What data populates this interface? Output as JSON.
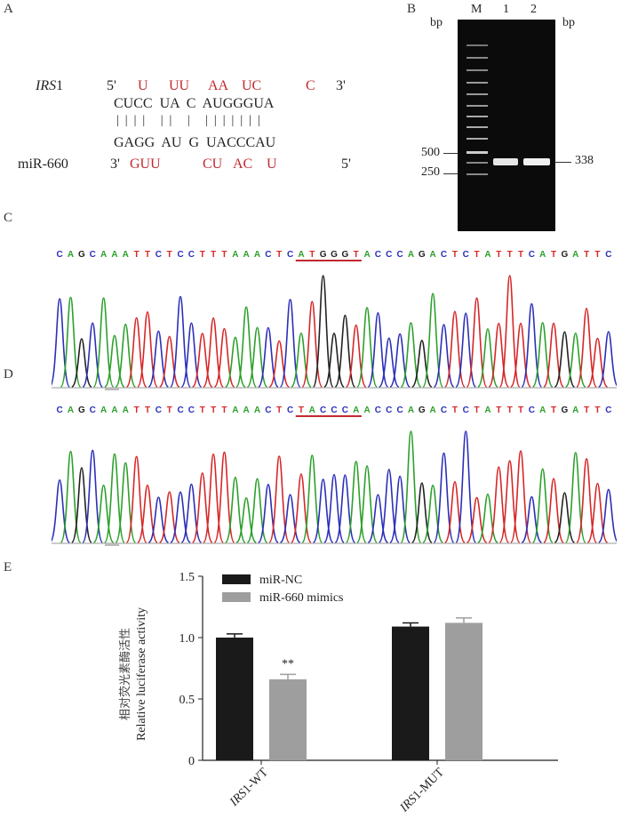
{
  "panels": {
    "a": "A",
    "b": "B",
    "c": "C",
    "d": "D",
    "e": "E"
  },
  "panel_a": {
    "gene_label_italic": "IRS",
    "gene_label_suffix": "1",
    "mirna_label": "miR-660",
    "five_prime": "5'",
    "three_prime": "3'",
    "top_red": [
      "U",
      "UU",
      "AA",
      "UC",
      "C"
    ],
    "top_pair": "CUCC  UA  C  AUGGGUA",
    "bonds": "|  |  |  |     |  |     |     |  |  |  |  |  |  |",
    "bottom_pair": "GAGG  AU  G  UACCCAU",
    "bottom_red": [
      "GUU",
      "CU",
      "AC",
      "U"
    ],
    "mirna_three": "3'",
    "mirna_five": "5'"
  },
  "panel_b": {
    "bp_left": "bp",
    "bp_right": "bp",
    "lanes": [
      "M",
      "1",
      "2"
    ],
    "marker_500": "500",
    "marker_250": "250",
    "band_size": "338"
  },
  "panel_c": {
    "sequence": "CAGCAAATTCTCCTTTAAACTCATGGGTACCCAGACTCTATTTCATGATTC",
    "underline_start": 22,
    "underline_end": 28
  },
  "panel_d": {
    "sequence": "CAGCAAATTCTCCTTTAAACTCTACCCAACCCAGACTCTATTTCATGATTC",
    "underline_start": 22,
    "underline_end": 28
  },
  "base_colors": {
    "A": "#2ca02c",
    "C": "#2b2fb8",
    "G": "#222222",
    "T": "#d62728"
  },
  "chart_data": {
    "type": "bar",
    "categories": [
      "IRS1-WT",
      "IRS1-MUT"
    ],
    "category_labels": [
      {
        "italic": "IRS",
        "rest": "1-WT"
      },
      {
        "italic": "IRS",
        "rest": "1-MUT"
      }
    ],
    "series": [
      {
        "name": "miR-NC",
        "values": [
          1.0,
          1.09
        ],
        "errors": [
          0.03,
          0.03
        ],
        "color": "#1a1a1a"
      },
      {
        "name": "miR-660 mimics",
        "values": [
          0.66,
          1.12
        ],
        "errors": [
          0.04,
          0.04
        ],
        "color": "#9e9e9e"
      }
    ],
    "annotations": [
      {
        "category": 0,
        "series": 1,
        "text": "**"
      }
    ],
    "ylabel_cn": "相对荧光素酶活性",
    "ylabel_en": "Relative luciferase activity",
    "ylim": [
      0,
      1.5
    ],
    "yticks": [
      "0",
      "0.5",
      "1.0",
      "1.5"
    ],
    "legend_position": "top-left"
  }
}
